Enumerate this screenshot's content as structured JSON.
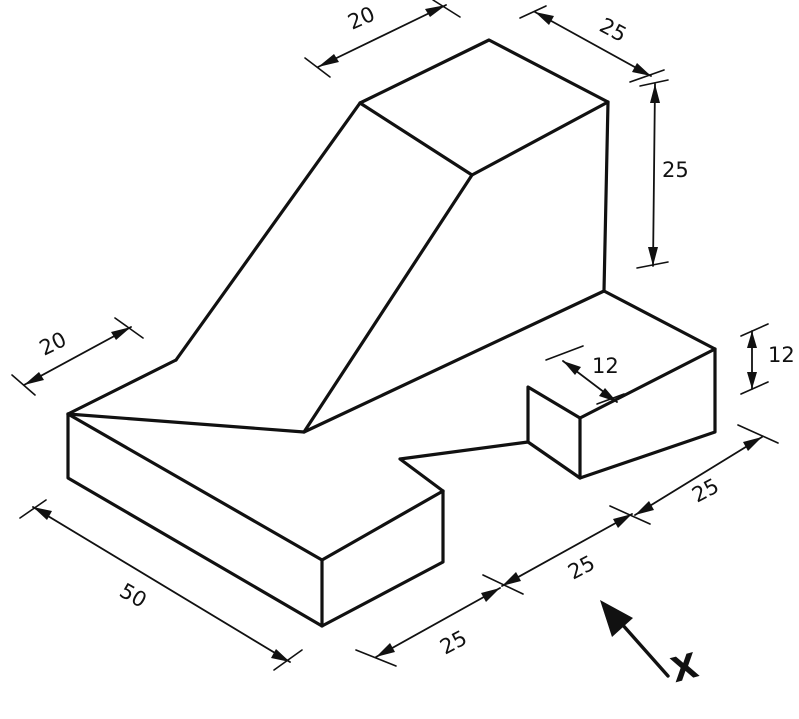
{
  "dimensions": {
    "top_width": "20",
    "top_depth": "25",
    "top_height": "25",
    "left_depth": "20",
    "front_length": "50",
    "notch_depth": "12",
    "notch_height": "12",
    "right_width": "25",
    "slot_width": "25",
    "bottom_width": "25"
  },
  "view_direction": {
    "label": "X",
    "icon": "view-arrow-icon"
  },
  "colors": {
    "ink": "#111111",
    "paper": "#ffffff"
  }
}
